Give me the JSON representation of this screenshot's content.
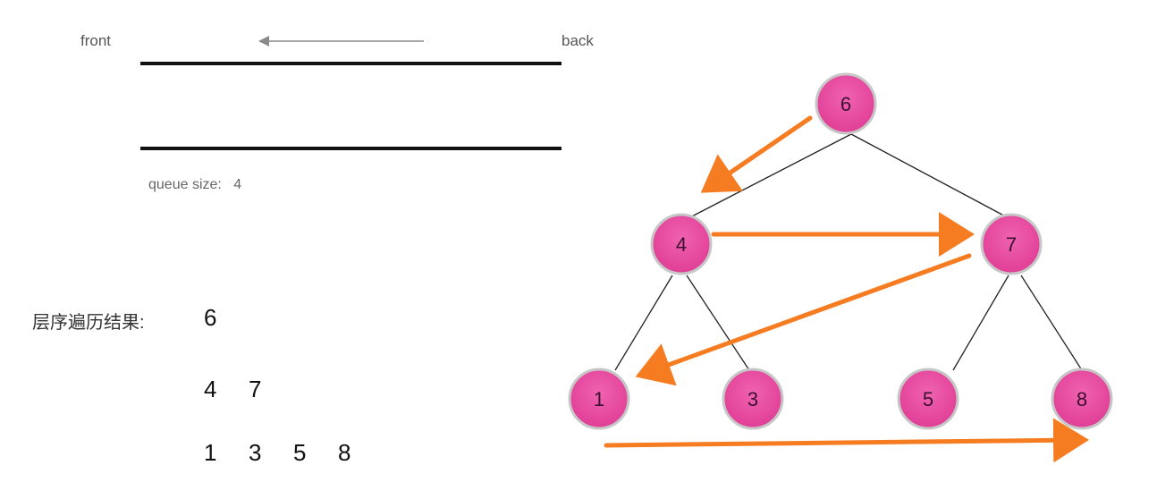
{
  "queue": {
    "front_label": "front",
    "back_label": "back",
    "size_label": "queue size:",
    "size_value": "4"
  },
  "result": {
    "title": "层序遍历结果:",
    "lines": [
      [
        "6"
      ],
      [
        "4",
        "7"
      ],
      [
        "1",
        "3",
        "5",
        "8"
      ]
    ]
  },
  "tree": {
    "nodes": {
      "n6": "6",
      "n4": "4",
      "n7": "7",
      "n1": "1",
      "n3": "3",
      "n5": "5",
      "n8": "8"
    }
  },
  "colors": {
    "node_fill": "#e8489f",
    "node_stroke": "#c7c7c7",
    "arrow": "#f57c21",
    "edge": "#222222"
  }
}
